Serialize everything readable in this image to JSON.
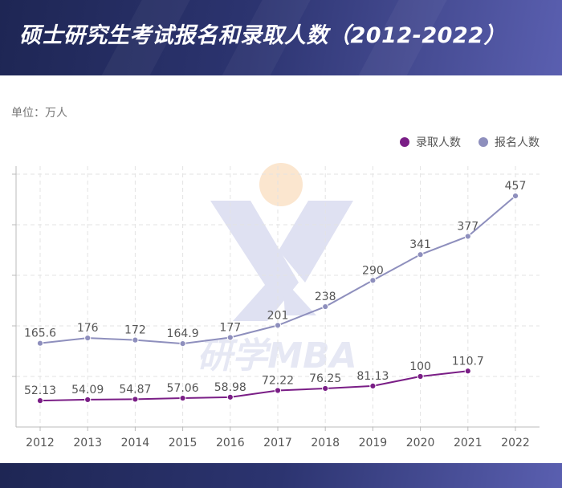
{
  "header": {
    "title": "硕士研究生考试报名和录取人数（2012-2022）"
  },
  "unit_label": "单位：万人",
  "watermark": {
    "text": "研学MBA"
  },
  "colors": {
    "admitted": "#7a1e86",
    "applicants": "#8e8fbd"
  },
  "chart_data": {
    "type": "line",
    "title": "硕士研究生考试报名和录取人数（2012-2022）",
    "unit": "单位：万人",
    "categories": [
      "2012",
      "2013",
      "2014",
      "2015",
      "2016",
      "2017",
      "2018",
      "2019",
      "2020",
      "2021",
      "2022"
    ],
    "series": [
      {
        "name": "录取人数",
        "values": [
          52.13,
          54.09,
          54.87,
          57.06,
          58.98,
          72.22,
          76.25,
          81.13,
          100,
          110.7,
          null
        ]
      },
      {
        "name": "报名人数",
        "values": [
          165.6,
          176,
          172,
          164.9,
          177,
          201,
          238,
          290,
          341,
          377,
          457
        ]
      }
    ],
    "ylim": [
      0,
      500
    ],
    "grid": true,
    "legend": "top-right"
  }
}
